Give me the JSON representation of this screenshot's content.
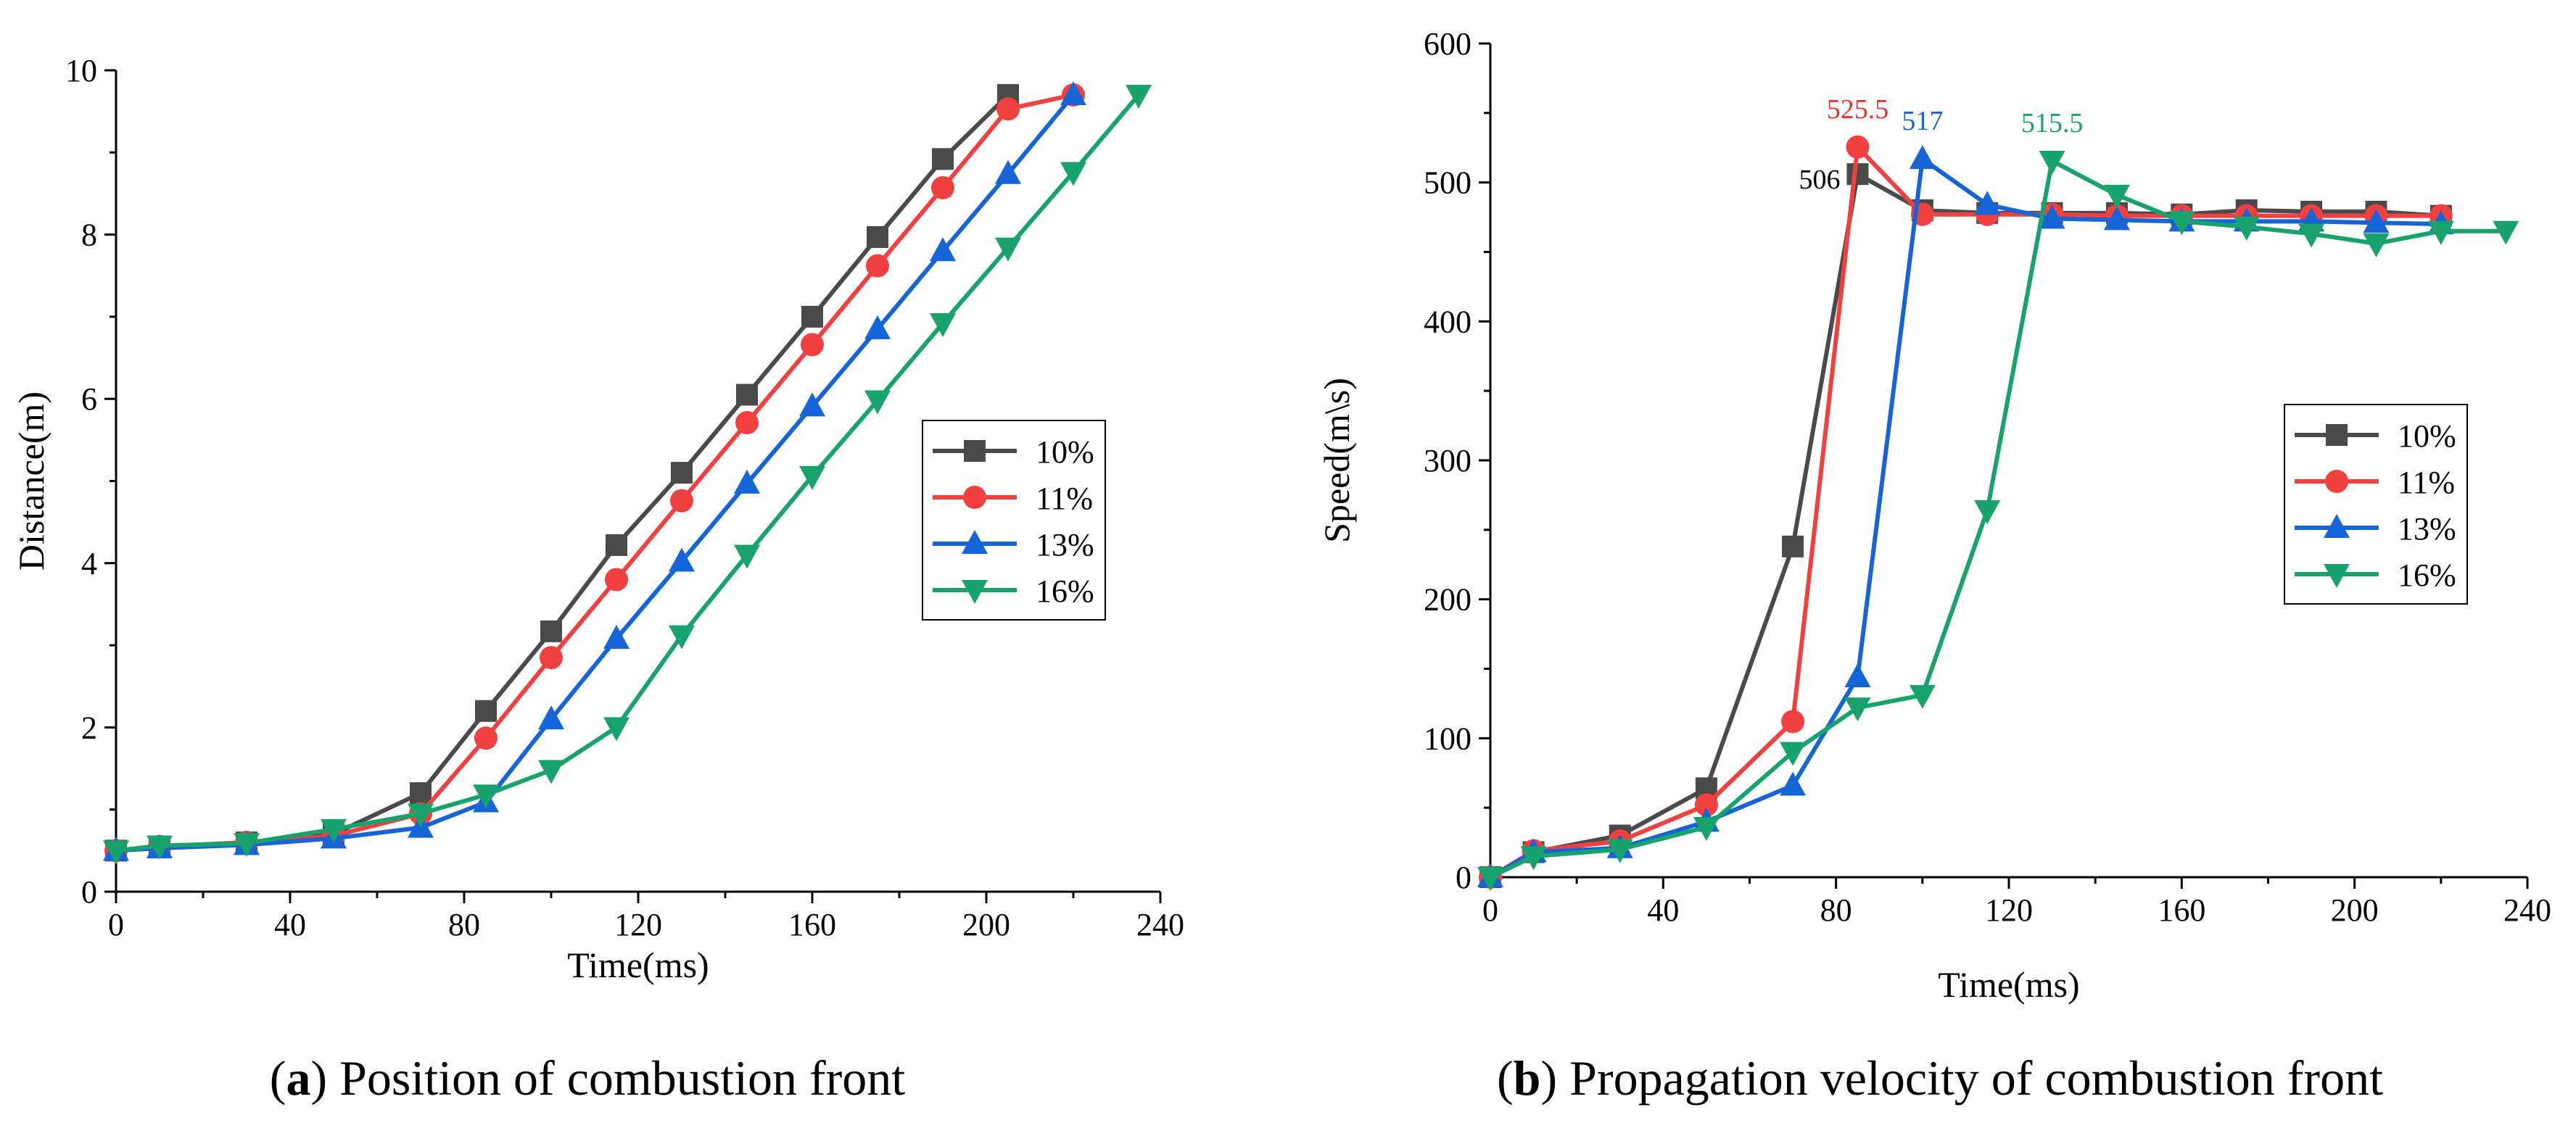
{
  "chart_data": [
    {
      "type": "line",
      "panel": "a",
      "xlabel": "Time(ms)",
      "ylabel": "Distance(m)",
      "xlim": [
        0,
        240
      ],
      "ylim": [
        0,
        10
      ],
      "xticks": [
        0,
        40,
        80,
        120,
        160,
        200,
        240
      ],
      "yticks": [
        0,
        2,
        4,
        6,
        8,
        10
      ],
      "grid": false,
      "legend_position": "center-right",
      "caption": {
        "label": "a",
        "text": " Position of combustion front"
      },
      "series": [
        {
          "name": "10%",
          "color": "#4a4a4a",
          "marker": "square",
          "x": [
            0,
            10,
            30,
            50,
            70,
            85,
            100,
            115,
            130,
            145,
            160,
            175,
            190,
            205
          ],
          "y": [
            0.5,
            0.55,
            0.6,
            0.7,
            1.2,
            2.2,
            3.17,
            4.22,
            5.1,
            6.05,
            7.0,
            7.97,
            8.92,
            9.7
          ]
        },
        {
          "name": "11%",
          "color": "#f04040",
          "marker": "circle",
          "x": [
            0,
            10,
            30,
            50,
            70,
            85,
            100,
            115,
            130,
            145,
            160,
            175,
            190,
            205,
            220
          ],
          "y": [
            0.5,
            0.55,
            0.6,
            0.68,
            0.95,
            1.87,
            2.85,
            3.8,
            4.76,
            5.71,
            6.66,
            7.62,
            8.57,
            9.53,
            9.7
          ]
        },
        {
          "name": "13%",
          "color": "#1565d8",
          "marker": "triangle-up",
          "x": [
            0,
            10,
            30,
            50,
            70,
            85,
            100,
            115,
            130,
            145,
            160,
            175,
            190,
            205,
            220
          ],
          "y": [
            0.5,
            0.53,
            0.57,
            0.65,
            0.78,
            1.09,
            2.1,
            3.08,
            4.02,
            4.97,
            5.91,
            6.85,
            7.8,
            8.74,
            9.7
          ]
        },
        {
          "name": "16%",
          "color": "#17a36b",
          "marker": "triangle-down",
          "x": [
            0,
            10,
            30,
            50,
            70,
            85,
            100,
            115,
            130,
            145,
            160,
            175,
            190,
            205,
            220,
            235
          ],
          "y": [
            0.5,
            0.56,
            0.59,
            0.76,
            0.95,
            1.18,
            1.48,
            2.0,
            3.12,
            4.1,
            5.06,
            5.98,
            6.92,
            7.84,
            8.76,
            9.7
          ]
        }
      ]
    },
    {
      "type": "line",
      "panel": "b",
      "xlabel": "Time(ms)",
      "ylabel": "Speed(m\\s)",
      "xlim": [
        0,
        240
      ],
      "ylim": [
        0,
        600
      ],
      "xticks": [
        0,
        40,
        80,
        120,
        160,
        200,
        240
      ],
      "yticks": [
        0,
        100,
        200,
        300,
        400,
        500,
        600
      ],
      "grid": false,
      "legend_position": "center-right",
      "caption": {
        "label": "b",
        "text": " Propagation velocity of combustion front"
      },
      "annotations": [
        {
          "text": "506",
          "x": 85,
          "y": 506,
          "color": "#000000",
          "side": "left"
        },
        {
          "text": "525.5",
          "x": 85,
          "y": 525.5,
          "color": "#e8332e",
          "side": "above"
        },
        {
          "text": "517",
          "x": 100,
          "y": 517,
          "color": "#1565d8",
          "side": "above"
        },
        {
          "text": "515.5",
          "x": 130,
          "y": 515.5,
          "color": "#17a36b",
          "side": "above"
        }
      ],
      "series": [
        {
          "name": "10%",
          "color": "#4a4a4a",
          "marker": "square",
          "x": [
            0,
            10,
            30,
            50,
            70,
            85,
            100,
            115,
            130,
            145,
            160,
            175,
            190,
            205,
            220
          ],
          "y": [
            0,
            18,
            30,
            64,
            238,
            506,
            480,
            478,
            478,
            478,
            477,
            480,
            479,
            479,
            476
          ]
        },
        {
          "name": "11%",
          "color": "#f04040",
          "marker": "circle",
          "x": [
            0,
            10,
            30,
            50,
            70,
            85,
            100,
            115,
            130,
            145,
            160,
            175,
            190,
            205,
            220
          ],
          "y": [
            0,
            19,
            26,
            52,
            112,
            525.5,
            477,
            477,
            477,
            476,
            476,
            476,
            476,
            476,
            476
          ]
        },
        {
          "name": "13%",
          "color": "#1565d8",
          "marker": "triangle-up",
          "x": [
            0,
            10,
            30,
            50,
            70,
            85,
            100,
            115,
            130,
            145,
            160,
            175,
            190,
            205,
            220
          ],
          "y": [
            0,
            18,
            21,
            40,
            66,
            144,
            517,
            484,
            474,
            473,
            472,
            472,
            472,
            471,
            470
          ]
        },
        {
          "name": "16%",
          "color": "#17a36b",
          "marker": "triangle-down",
          "x": [
            0,
            10,
            30,
            50,
            70,
            85,
            100,
            115,
            130,
            145,
            160,
            175,
            190,
            205,
            220,
            235
          ],
          "y": [
            0,
            15,
            20,
            36,
            90,
            122,
            131,
            264,
            515.5,
            491,
            472,
            468,
            463,
            456,
            465,
            465
          ]
        }
      ]
    }
  ]
}
